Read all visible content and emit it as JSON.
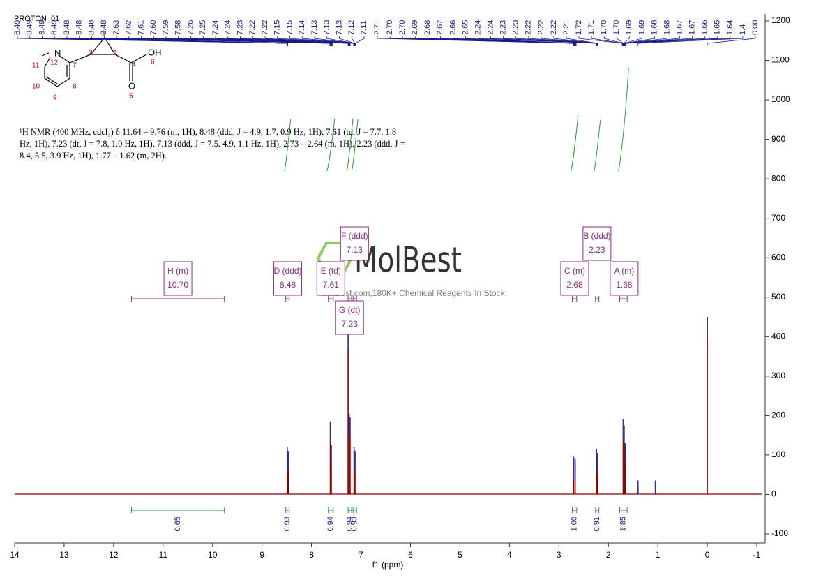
{
  "chart_data": {
    "type": "nmr",
    "title": "PROTON_01",
    "xlabel": "f1  (ppm)",
    "xlim": [
      14,
      -1
    ],
    "xticks": [
      14,
      13,
      12,
      11,
      10,
      9,
      8,
      7,
      6,
      5,
      4,
      3,
      2,
      1,
      0,
      -1
    ],
    "ylim": [
      -100,
      1200
    ],
    "yticks": [
      -100,
      0,
      100,
      200,
      300,
      400,
      500,
      600,
      700,
      800,
      900,
      1000,
      1100,
      1200
    ],
    "color": "#8b0000",
    "x": [
      8.49,
      8.47,
      7.62,
      7.6,
      7.26,
      7.24,
      7.22,
      7.14,
      7.12,
      2.7,
      2.67,
      2.24,
      2.22,
      1.7,
      1.68,
      1.66,
      1.4,
      1.05,
      0.0
    ],
    "values": [
      120,
      110,
      185,
      125,
      420,
      205,
      195,
      120,
      110,
      95,
      90,
      115,
      105,
      190,
      175,
      130,
      35,
      35,
      450
    ],
    "peak_labels": [
      8.49,
      8.49,
      8.49,
      8.49,
      8.48,
      8.48,
      8.48,
      8.48,
      7.63,
      7.62,
      7.61,
      {
        "value": 7.6,
        "label": "7.60"
      },
      7.59,
      7.58,
      7.26,
      7.25,
      7.24,
      7.24,
      7.23,
      7.22,
      7.22,
      7.15,
      7.15,
      7.14,
      7.13,
      7.13,
      7.13,
      7.12,
      7.11,
      2.71,
      {
        "value": 2.7,
        "label": "2.70"
      },
      {
        "value": 2.7,
        "label": "2.70"
      },
      2.69,
      2.68,
      2.67,
      2.66,
      2.65,
      2.24,
      2.24,
      2.23,
      2.23,
      2.22,
      2.22,
      2.22,
      2.21,
      1.72,
      1.71,
      {
        "value": 1.7,
        "label": "1.70"
      },
      {
        "value": 1.7,
        "label": "1.70"
      },
      1.69,
      1.69,
      1.68,
      1.68,
      1.67,
      1.67,
      1.66,
      1.65,
      1.64,
      1.4,
      {
        "value": 0,
        "label": "0.00"
      }
    ],
    "integrals": [
      {
        "range": [
          11.64,
          9.76
        ],
        "value": 0.65
      },
      {
        "range": [
          8.52,
          8.45
        ],
        "value": 0.93
      },
      {
        "range": [
          7.66,
          7.56
        ],
        "value": 0.94
      },
      {
        "range": [
          7.26,
          7.19
        ],
        "value": 0.94
      },
      {
        "range": [
          7.16,
          7.09
        ],
        "value": 0.93
      },
      {
        "range": [
          2.73,
          2.64
        ],
        "value": {
          "value": 1,
          "label": "1.00"
        }
      },
      {
        "range": [
          2.26,
          2.19
        ],
        "value": 0.91
      },
      {
        "range": [
          1.77,
          1.62
        ],
        "value": 1.85
      }
    ],
    "multiplets": [
      {
        "label": "H (m)",
        "shift": {
          "value": 10.7,
          "label": "10.70"
        },
        "range": [
          11.64,
          9.76
        ]
      },
      {
        "label": "D (ddd)",
        "shift": 8.48,
        "range": [
          8.52,
          8.45
        ]
      },
      {
        "label": "E (td)",
        "shift": 7.61,
        "range": [
          7.66,
          7.56
        ]
      },
      {
        "label": "F (ddd)",
        "shift": 7.13,
        "range": [
          7.16,
          7.09
        ]
      },
      {
        "label": "G (dt)",
        "shift": 7.23,
        "range": [
          7.26,
          7.19
        ]
      },
      {
        "label": "C (m)",
        "shift": 2.68,
        "range": [
          2.73,
          2.64
        ]
      },
      {
        "label": "B (ddd)",
        "shift": 2.23,
        "range": [
          2.26,
          2.19
        ]
      },
      {
        "label": "A (m)",
        "shift": 1.68,
        "range": [
          1.77,
          1.62
        ]
      }
    ],
    "description": "¹H NMR (400 MHz, cdcl₃) δ 11.64 – 9.76 (m, 1H), 8.48 (ddd, J = 4.9, 1.7, 0.9 Hz, 1H), 7.61 (td, J = 7.7, 1.8 Hz, 1H), 7.23 (dt, J = 7.8, 1.0 Hz, 1H), 7.13 (ddd, J = 7.5, 4.9, 1.1 Hz, 1H), 2.73 – 2.64 (m, 1H), 2.23 (ddd, J = 8.4, 5.5, 3.9 Hz, 1H), 1.77 – 1.62 (m, 2H).",
    "structure": {
      "atoms": [
        "N",
        "12",
        "11",
        "10",
        "9",
        "8",
        "7",
        "2",
        "3",
        "1",
        "4",
        "OH",
        "6",
        "O",
        "5"
      ]
    },
    "watermark": {
      "brand": "MolBest",
      "tagline": "molBest.com,180K+ Chemical Reagents In Stock."
    }
  }
}
